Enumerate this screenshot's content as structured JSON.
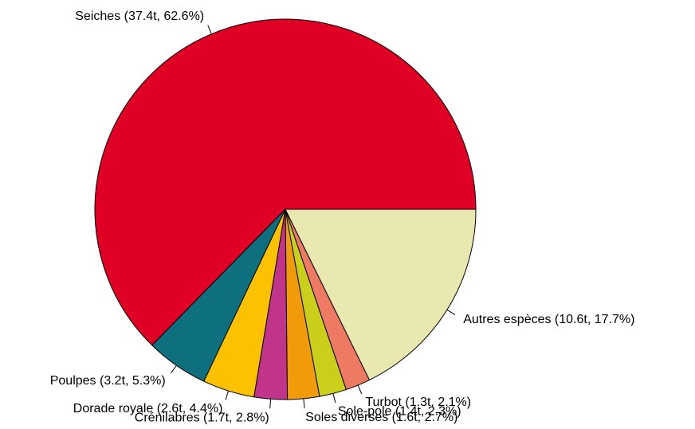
{
  "chart_data": {
    "type": "pie",
    "categories": [
      "Seiches (37.4t, 62.6%)",
      "Poulpes (3.2t, 5.3%)",
      "Dorade royale (2.6t, 4.4%)",
      "Crénilabres (1.7t, 2.8%)",
      "Soles diverses (1.6t, 2.7%)",
      "Sole-pole (1.4t, 2.3%)",
      "Turbot (1.3t, 2.1%)",
      "Autres espèces (10.6t, 17.7%)"
    ],
    "values": [
      62.6,
      5.3,
      4.4,
      2.8,
      2.7,
      2.3,
      2.1,
      17.7
    ],
    "colors": [
      "#e00025",
      "#0e6f7e",
      "#fcc100",
      "#c0358a",
      "#f29b0a",
      "#c9cf1a",
      "#ee7a64",
      "#e8e8b0"
    ]
  }
}
